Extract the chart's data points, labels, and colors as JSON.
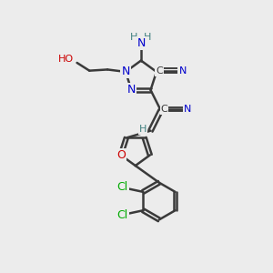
{
  "bg_color": "#ececec",
  "bond_color": "#3a3a3a",
  "bond_width": 1.8,
  "atom_colors": {
    "N": "#0000cc",
    "O": "#cc0000",
    "Cl": "#00aa00",
    "C": "#3a3a3a",
    "H": "#408080"
  }
}
